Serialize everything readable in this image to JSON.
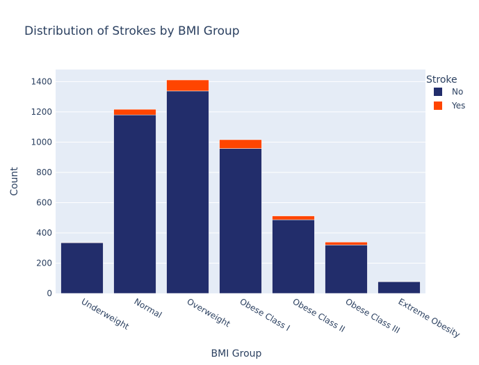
{
  "chart_data": {
    "type": "bar",
    "stacked": true,
    "title": "Distribution of Strokes by BMI Group",
    "xlabel": "BMI Group",
    "ylabel": "Count",
    "ylim": [
      0,
      1480
    ],
    "yticks": [
      0,
      200,
      400,
      600,
      800,
      1000,
      1200,
      1400
    ],
    "grid": true,
    "legend": {
      "title": "Stroke",
      "placement": "right"
    },
    "categories": [
      "Underweight",
      "Normal",
      "Overweight",
      "Obese Class I",
      "Obese Class II",
      "Obese Class III",
      "Extreme Obesity"
    ],
    "series": [
      {
        "name": "No",
        "color": "#222d6b",
        "values": [
          335,
          1180,
          1338,
          958,
          487,
          320,
          77
        ]
      },
      {
        "name": "Yes",
        "color": "#ff4500",
        "values": [
          1,
          37,
          73,
          58,
          25,
          19,
          2
        ]
      }
    ]
  },
  "colors": {
    "plot_bg": "#e5ecf6",
    "grid": "#ffffff"
  }
}
